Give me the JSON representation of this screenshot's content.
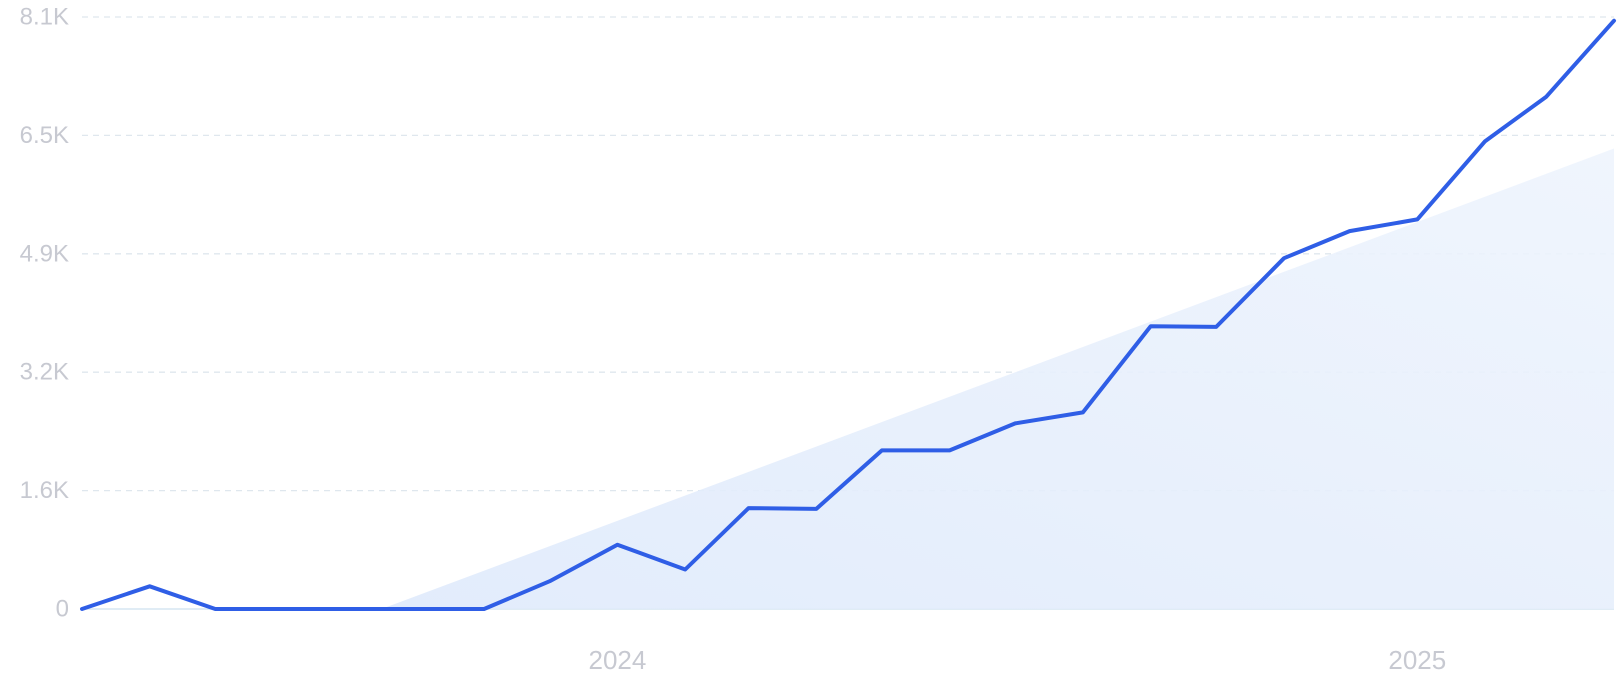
{
  "chart_data": {
    "type": "line",
    "colors": {
      "line": "#2f5ee6",
      "trend_fill": "#dfeafb"
    },
    "grid": "horizontal-dashed",
    "ylim": [
      0,
      8100
    ],
    "y_ticks": [
      {
        "value": 0,
        "label": "0"
      },
      {
        "value": 1620,
        "label": "1.6K"
      },
      {
        "value": 3240,
        "label": "3.2K"
      },
      {
        "value": 4860,
        "label": "4.9K"
      },
      {
        "value": 6480,
        "label": "6.5K"
      },
      {
        "value": 8100,
        "label": "8.1K"
      }
    ],
    "xlim": [
      "2023-05-01",
      "2025-04-01"
    ],
    "x_ticks": [
      {
        "value": "2024-01-01",
        "label": "2024"
      },
      {
        "value": "2025-01-01",
        "label": "2025"
      }
    ],
    "series": [
      {
        "type": "line",
        "x": [
          "2023-05-01",
          "2023-06-01",
          "2023-07-01",
          "2023-08-01",
          "2023-09-01",
          "2023-10-01",
          "2023-11-01",
          "2023-12-01",
          "2024-01-01",
          "2024-02-01",
          "2024-03-01",
          "2024-04-01",
          "2024-05-01",
          "2024-06-01",
          "2024-07-01",
          "2024-08-01",
          "2024-09-01",
          "2024-10-01",
          "2024-11-01",
          "2024-12-01",
          "2025-01-01",
          "2025-02-01",
          "2025-03-01",
          "2025-04-01"
        ],
        "y": [
          0,
          310,
          0,
          0,
          0,
          0,
          0,
          380,
          880,
          540,
          1380,
          1370,
          2170,
          2170,
          2540,
          2690,
          3870,
          3860,
          4800,
          5170,
          5330,
          6400,
          7010,
          8050
        ]
      },
      {
        "type": "area",
        "x": [
          "2023-09-15",
          "2025-04-01"
        ],
        "y": [
          0,
          6300
        ]
      }
    ]
  }
}
